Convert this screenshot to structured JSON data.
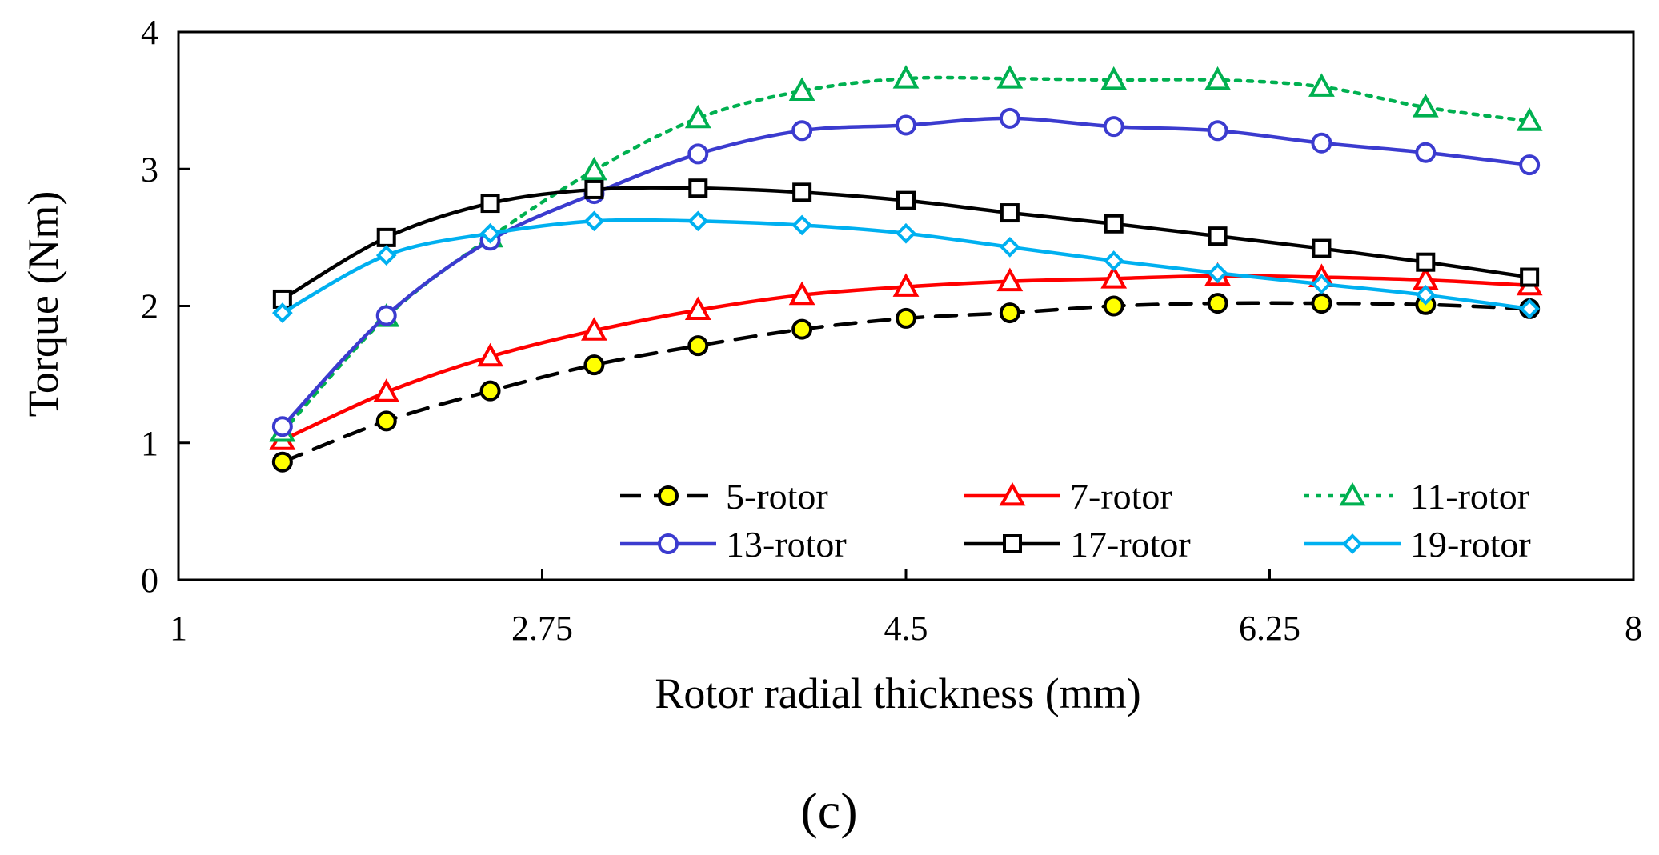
{
  "chart_data": {
    "type": "line",
    "title": "",
    "xlabel": "Rotor radial thickness (mm)",
    "ylabel": "Torque (Nm)",
    "xlim": [
      1,
      8
    ],
    "ylim": [
      0,
      4
    ],
    "xticks": [
      "1",
      "2.75",
      "4.5",
      "6.25",
      "8"
    ],
    "yticks": [
      "0",
      "1",
      "2",
      "3",
      "4"
    ],
    "grid": false,
    "legend_position": "lower-right inside",
    "x": [
      1.5,
      2.0,
      2.5,
      3.0,
      3.5,
      4.0,
      4.5,
      5.0,
      5.5,
      6.0,
      6.5,
      7.0,
      7.5
    ],
    "series": [
      {
        "name": "5-rotor",
        "label": "5-rotor",
        "color": "#000000",
        "marker": "circle",
        "marker_fill": "#ffff00",
        "dash": "dashed",
        "values": [
          0.86,
          1.16,
          1.38,
          1.57,
          1.71,
          1.83,
          1.91,
          1.95,
          2.0,
          2.02,
          2.02,
          2.01,
          1.98
        ]
      },
      {
        "name": "7-rotor",
        "label": "7-rotor",
        "color": "#ff0000",
        "marker": "triangle",
        "marker_fill": "#ffffff",
        "dash": "solid",
        "values": [
          1.02,
          1.37,
          1.63,
          1.82,
          1.97,
          2.08,
          2.14,
          2.18,
          2.2,
          2.22,
          2.21,
          2.19,
          2.15
        ]
      },
      {
        "name": "11-rotor",
        "label": "11-rotor",
        "color": "#00b050",
        "marker": "triangle",
        "marker_fill": "#ffffff",
        "dash": "dotted",
        "values": [
          1.08,
          1.92,
          2.5,
          2.99,
          3.37,
          3.57,
          3.66,
          3.66,
          3.65,
          3.65,
          3.6,
          3.45,
          3.35
        ]
      },
      {
        "name": "13-rotor",
        "label": "13-rotor",
        "color": "#3b3bcf",
        "marker": "circle",
        "marker_fill": "#ffffff",
        "dash": "solid",
        "values": [
          1.12,
          1.93,
          2.48,
          2.82,
          3.11,
          3.28,
          3.32,
          3.37,
          3.31,
          3.28,
          3.19,
          3.12,
          3.03
        ]
      },
      {
        "name": "17-rotor",
        "label": "17-rotor",
        "color": "#000000",
        "marker": "square",
        "marker_fill": "#ffffff",
        "dash": "solid",
        "values": [
          2.05,
          2.5,
          2.75,
          2.85,
          2.86,
          2.83,
          2.77,
          2.68,
          2.6,
          2.51,
          2.42,
          2.32,
          2.21
        ]
      },
      {
        "name": "19-rotor",
        "label": "19-rotor",
        "color": "#00b0f0",
        "marker": "diamond",
        "marker_fill": "#ffffff",
        "dash": "solid",
        "values": [
          1.95,
          2.37,
          2.53,
          2.62,
          2.62,
          2.59,
          2.53,
          2.43,
          2.33,
          2.24,
          2.16,
          2.08,
          1.98
        ]
      }
    ],
    "caption": "(c)"
  }
}
